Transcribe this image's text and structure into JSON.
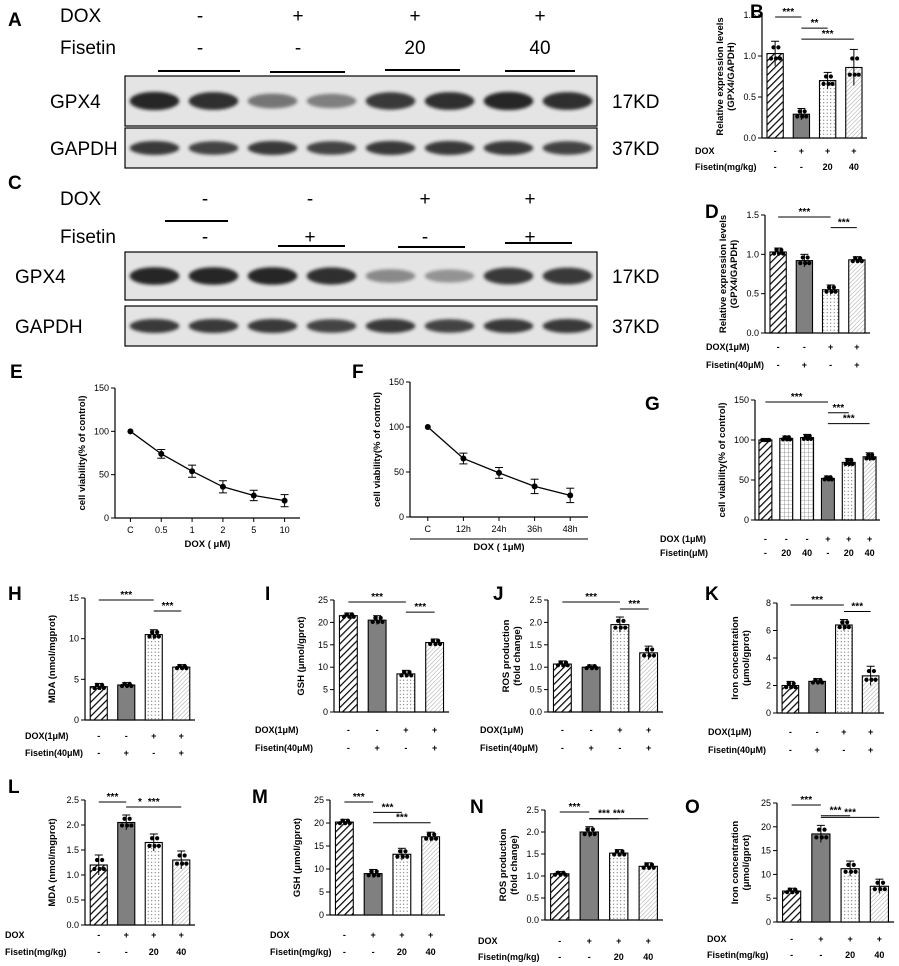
{
  "colors": {
    "ink": "#000000",
    "bar_solid": "#808080",
    "band_dark": "#1a1a1a",
    "membrane": "#e4e4e4"
  },
  "blots": [
    {
      "panel": "A",
      "conditions": [
        {
          "label": "DOX",
          "values": [
            "-",
            "+",
            "+",
            "+"
          ]
        },
        {
          "label": "Fisetin",
          "values": [
            "-",
            "-",
            "20",
            "40"
          ]
        }
      ],
      "rows": [
        {
          "protein": "GPX4",
          "size": "17KD",
          "intensity": [
            0.95,
            0.9,
            0.55,
            0.5,
            0.85,
            0.9,
            0.95,
            0.9
          ]
        },
        {
          "protein": "GAPDH",
          "size": "37KD",
          "intensity": [
            0.85,
            0.8,
            0.85,
            0.8,
            0.85,
            0.85,
            0.85,
            0.8
          ]
        }
      ]
    },
    {
      "panel": "C",
      "conditions": [
        {
          "label": "DOX",
          "values": [
            "-",
            "-",
            "+",
            "+"
          ]
        },
        {
          "label": "Fisetin",
          "values": [
            "-",
            "+",
            "-",
            "+"
          ]
        }
      ],
      "rows": [
        {
          "protein": "GPX4",
          "size": "17KD",
          "intensity": [
            0.95,
            0.95,
            0.95,
            0.9,
            0.45,
            0.4,
            0.85,
            0.85
          ]
        },
        {
          "protein": "GAPDH",
          "size": "37KD",
          "intensity": [
            0.85,
            0.85,
            0.85,
            0.8,
            0.85,
            0.8,
            0.85,
            0.85
          ]
        }
      ]
    }
  ],
  "chart_data": [
    {
      "panel": "B",
      "type": "bar",
      "ylabel": "Relative expression levels\n(GPX4/GAPDH)",
      "ylim": [
        0,
        1.5
      ],
      "yticks": [
        "0.0",
        "0.5",
        "1.0",
        "1.5"
      ],
      "values": [
        1.03,
        0.29,
        0.7,
        0.86
      ],
      "errors": [
        0.15,
        0.07,
        0.1,
        0.22
      ],
      "patterns": [
        "hatch",
        "dark",
        "dots",
        "cross"
      ],
      "rows": [
        {
          "label": "DOX",
          "values": [
            "-",
            "+",
            "+",
            "+"
          ]
        },
        {
          "label": "Fisetin(mg/kg)",
          "values": [
            "-",
            "-",
            "20",
            "40"
          ]
        }
      ],
      "sig": [
        {
          "from": 0,
          "to": 1,
          "label": "***"
        },
        {
          "from": 1,
          "to": 2,
          "label": "**"
        },
        {
          "from": 1,
          "to": 3,
          "label": "***"
        }
      ]
    },
    {
      "panel": "D",
      "type": "bar",
      "ylabel": "Relative expression levels\n(GPX4/GAPDH)",
      "ylim": [
        0,
        1.5
      ],
      "yticks": [
        "0.0",
        "0.5",
        "1.0",
        "1.5"
      ],
      "values": [
        1.03,
        0.92,
        0.55,
        0.93
      ],
      "errors": [
        0.05,
        0.08,
        0.06,
        0.04
      ],
      "patterns": [
        "hatch",
        "dark",
        "dots",
        "cross"
      ],
      "rows": [
        {
          "label": "DOX(1μM)",
          "values": [
            "-",
            "-",
            "+",
            "+"
          ]
        },
        {
          "label": "Fisetin(40μM)",
          "values": [
            "-",
            "+",
            "-",
            "+"
          ]
        }
      ],
      "sig": [
        {
          "from": 0,
          "to": 2,
          "label": "***"
        },
        {
          "from": 2,
          "to": 3,
          "label": "***"
        }
      ]
    },
    {
      "panel": "E",
      "type": "line",
      "xlabel": "DOX ( μM)",
      "ylabel": "cell viability(% of control)",
      "ylim": [
        0,
        150
      ],
      "yticks": [
        "0",
        "50",
        "100",
        "150"
      ],
      "categories": [
        "C",
        "0.5",
        "1",
        "2",
        "5",
        "10"
      ],
      "values": [
        100,
        74,
        54,
        36,
        26,
        20
      ],
      "errors": [
        0,
        5,
        7,
        7,
        6,
        7
      ]
    },
    {
      "panel": "F",
      "type": "line",
      "xlabel": "DOX ( 1μM)",
      "ylabel": "cell viability(% of control)",
      "ylim": [
        0,
        150
      ],
      "yticks": [
        "0",
        "50",
        "100",
        "150"
      ],
      "categories": [
        "C",
        "12h",
        "24h",
        "36h",
        "48h"
      ],
      "values": [
        100,
        65,
        49,
        34,
        24
      ],
      "errors": [
        0,
        6,
        6,
        8,
        8
      ]
    },
    {
      "panel": "G",
      "type": "bar",
      "ylabel": "cell viability(% of control)",
      "ylim": [
        0,
        150
      ],
      "yticks": [
        "0",
        "50",
        "100",
        "150"
      ],
      "values": [
        100,
        102,
        103,
        52,
        72,
        79
      ],
      "errors": [
        0,
        3,
        4,
        3,
        5,
        5
      ],
      "patterns": [
        "hatch",
        "grid",
        "grid",
        "dark",
        "dots",
        "cross"
      ],
      "rows": [
        {
          "label": "DOX (1μM)",
          "values": [
            "-",
            "-",
            "-",
            "+",
            "+",
            "+"
          ]
        },
        {
          "label": "Fisetin(μM)",
          "values": [
            "-",
            "20",
            "40",
            "-",
            "20",
            "40"
          ]
        }
      ],
      "sig": [
        {
          "from": 0,
          "to": 3,
          "label": "***"
        },
        {
          "from": 3,
          "to": 4,
          "label": "***"
        },
        {
          "from": 3,
          "to": 5,
          "label": "***"
        }
      ]
    },
    {
      "panel": "H",
      "type": "bar",
      "ylabel": "MDA (nmol/mgprot)",
      "ylim": [
        0,
        15
      ],
      "yticks": [
        "0",
        "5",
        "10",
        "15"
      ],
      "values": [
        4.1,
        4.3,
        10.5,
        6.5
      ],
      "errors": [
        0.4,
        0.3,
        0.6,
        0.3
      ],
      "patterns": [
        "hatch",
        "dark",
        "dots",
        "cross"
      ],
      "rows": [
        {
          "label": "DOX(1μM)",
          "values": [
            "-",
            "-",
            "+",
            "+"
          ]
        },
        {
          "label": "Fisetin(40μM)",
          "values": [
            "-",
            "+",
            "-",
            "+"
          ]
        }
      ],
      "sig": [
        {
          "from": 0,
          "to": 2,
          "label": "***"
        },
        {
          "from": 2,
          "to": 3,
          "label": "***"
        }
      ]
    },
    {
      "panel": "I",
      "type": "bar",
      "ylabel": "GSH (μmol/gprot)",
      "ylim": [
        0,
        25
      ],
      "yticks": [
        "0",
        "5",
        "10",
        "15",
        "20",
        "25"
      ],
      "values": [
        21.5,
        20.5,
        8.5,
        15.5
      ],
      "errors": [
        0.6,
        1.0,
        0.8,
        0.8
      ],
      "patterns": [
        "hatch",
        "dark",
        "dots",
        "cross"
      ],
      "rows": [
        {
          "label": "DOX(1μM)",
          "values": [
            "-",
            "-",
            "+",
            "+"
          ]
        },
        {
          "label": "Fisetin(40μM)",
          "values": [
            "-",
            "+",
            "-",
            "+"
          ]
        }
      ],
      "sig": [
        {
          "from": 0,
          "to": 2,
          "label": "***"
        },
        {
          "from": 2,
          "to": 3,
          "label": "***"
        }
      ]
    },
    {
      "panel": "J",
      "type": "bar",
      "ylabel": "ROS production\n(fold change)",
      "ylim": [
        0,
        2.5
      ],
      "yticks": [
        "0.0",
        "0.5",
        "1.0",
        "1.5",
        "2.0",
        "2.5"
      ],
      "values": [
        1.07,
        1.0,
        1.95,
        1.32
      ],
      "errors": [
        0.07,
        0.05,
        0.17,
        0.15
      ],
      "patterns": [
        "hatch",
        "dark",
        "dots",
        "cross"
      ],
      "rows": [
        {
          "label": "DOX(1μM)",
          "values": [
            "-",
            "-",
            "+",
            "+"
          ]
        },
        {
          "label": "Fisetin(40μM)",
          "values": [
            "-",
            "+",
            "-",
            "+"
          ]
        }
      ],
      "sig": [
        {
          "from": 0,
          "to": 2,
          "label": "***"
        },
        {
          "from": 2,
          "to": 3,
          "label": "***"
        }
      ]
    },
    {
      "panel": "K",
      "type": "bar",
      "ylabel": "Iron concentration\n(μmol/gprot)",
      "ylim": [
        0,
        8
      ],
      "yticks": [
        "0",
        "2",
        "4",
        "6",
        "8"
      ],
      "values": [
        2.0,
        2.3,
        6.4,
        2.7
      ],
      "errors": [
        0.3,
        0.2,
        0.4,
        0.7
      ],
      "patterns": [
        "hatch",
        "dark",
        "dots",
        "cross"
      ],
      "rows": [
        {
          "label": "DOX(1μM)",
          "values": [
            "-",
            "-",
            "+",
            "+"
          ]
        },
        {
          "label": "Fisetin(40μM)",
          "values": [
            "-",
            "+",
            "-",
            "+"
          ]
        }
      ],
      "sig": [
        {
          "from": 0,
          "to": 2,
          "label": "***"
        },
        {
          "from": 2,
          "to": 3,
          "label": "***"
        }
      ]
    },
    {
      "panel": "L",
      "type": "bar",
      "ylabel": "MDA (nmol/mgprot)",
      "ylim": [
        0,
        2.5
      ],
      "yticks": [
        "0.0",
        "0.5",
        "1.0",
        "1.5",
        "2.0",
        "2.5"
      ],
      "values": [
        1.2,
        2.05,
        1.65,
        1.3
      ],
      "errors": [
        0.2,
        0.15,
        0.17,
        0.18
      ],
      "patterns": [
        "hatch",
        "dark",
        "dots",
        "cross"
      ],
      "rows": [
        {
          "label": "DOX",
          "values": [
            "-",
            "+",
            "+",
            "+"
          ]
        },
        {
          "label": "Fisetin(mg/kg)",
          "values": [
            "-",
            "-",
            "20",
            "40"
          ]
        }
      ],
      "sig": [
        {
          "from": 0,
          "to": 1,
          "label": "***"
        },
        {
          "from": 1,
          "to": 2,
          "label": "*"
        },
        {
          "from": 1,
          "to": 3,
          "label": "***"
        }
      ]
    },
    {
      "panel": "M",
      "type": "bar",
      "ylabel": "GSH (μmol/gprot)",
      "ylim": [
        0,
        25
      ],
      "yticks": [
        "0",
        "5",
        "10",
        "15",
        "20",
        "25"
      ],
      "values": [
        20.2,
        9.0,
        13.2,
        17.0
      ],
      "errors": [
        0.6,
        0.9,
        1.3,
        1.0
      ],
      "patterns": [
        "hatch",
        "dark",
        "dots",
        "cross"
      ],
      "rows": [
        {
          "label": "DOX",
          "values": [
            "-",
            "+",
            "+",
            "+"
          ]
        },
        {
          "label": "Fisetin(mg/kg)",
          "values": [
            "-",
            "-",
            "20",
            "40"
          ]
        }
      ],
      "sig": [
        {
          "from": 0,
          "to": 1,
          "label": "***"
        },
        {
          "from": 1,
          "to": 2,
          "label": "***"
        },
        {
          "from": 1,
          "to": 3,
          "label": "***"
        }
      ]
    },
    {
      "panel": "N",
      "type": "bar",
      "ylabel": "ROS production\n(fold change)",
      "ylim": [
        0,
        2.5
      ],
      "yticks": [
        "0.0",
        "0.5",
        "1.0",
        "1.5",
        "2.0",
        "2.5"
      ],
      "values": [
        1.05,
        2.0,
        1.52,
        1.22
      ],
      "errors": [
        0.05,
        0.12,
        0.08,
        0.08
      ],
      "patterns": [
        "hatch",
        "dark",
        "dots",
        "cross"
      ],
      "rows": [
        {
          "label": "DOX",
          "values": [
            "-",
            "+",
            "+",
            "+"
          ]
        },
        {
          "label": "Fisetin(mg/kg)",
          "values": [
            "-",
            "-",
            "20",
            "40"
          ]
        }
      ],
      "sig": [
        {
          "from": 0,
          "to": 1,
          "label": "***"
        },
        {
          "from": 1,
          "to": 2,
          "label": "***"
        },
        {
          "from": 1,
          "to": 3,
          "label": "***"
        }
      ]
    },
    {
      "panel": "O",
      "type": "bar",
      "ylabel": "Iron concentration\n(μmol/gprot)",
      "ylim": [
        0,
        25
      ],
      "yticks": [
        "0",
        "5",
        "10",
        "15",
        "20",
        "25"
      ],
      "values": [
        6.5,
        18.5,
        11.2,
        7.5
      ],
      "errors": [
        0.6,
        1.8,
        1.6,
        1.5
      ],
      "patterns": [
        "hatch",
        "dark",
        "dots",
        "cross"
      ],
      "rows": [
        {
          "label": "DOX",
          "values": [
            "-",
            "+",
            "+",
            "+"
          ]
        },
        {
          "label": "Fisetin(mg/kg)",
          "values": [
            "-",
            "-",
            "20",
            "40"
          ]
        }
      ],
      "sig": [
        {
          "from": 0,
          "to": 1,
          "label": "***"
        },
        {
          "from": 1,
          "to": 2,
          "label": "***"
        },
        {
          "from": 1,
          "to": 3,
          "label": "***"
        }
      ]
    }
  ]
}
